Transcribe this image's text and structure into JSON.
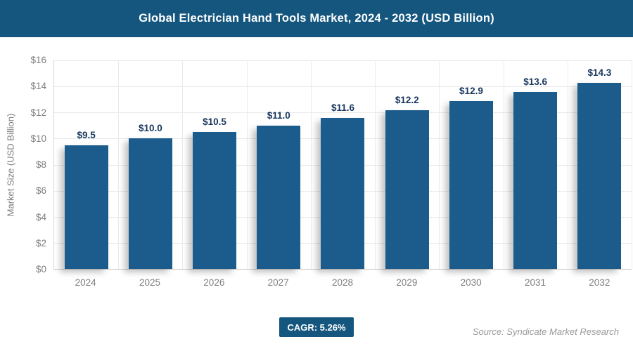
{
  "header": {
    "title": "Global Electrician Hand Tools Market, 2024 - 2032 (USD Billion)"
  },
  "chart_data": {
    "type": "bar",
    "title": "Global Electrician Hand Tools Market, 2024 - 2032 (USD Billion)",
    "categories": [
      "2024",
      "2025",
      "2026",
      "2027",
      "2028",
      "2029",
      "2030",
      "2031",
      "2032"
    ],
    "values": [
      9.5,
      10.0,
      10.5,
      11.0,
      11.6,
      12.2,
      12.9,
      13.6,
      14.3
    ],
    "value_labels": [
      "$9.5",
      "$10.0",
      "$10.5",
      "$11.0",
      "$11.6",
      "$12.2",
      "$12.9",
      "$13.6",
      "$14.3"
    ],
    "xlabel": "",
    "ylabel": "Market Size (USD Billion)",
    "ylim": [
      0,
      16
    ],
    "ytick_values": [
      0,
      2,
      4,
      6,
      8,
      10,
      12,
      14,
      16
    ],
    "ytick_labels": [
      "$0",
      "$2",
      "$4",
      "$6",
      "$8",
      "$10",
      "$12",
      "$14",
      "$16"
    ],
    "grid": "horizontal and vertical light gray",
    "legend": "none"
  },
  "footer": {
    "cagr_label": "CAGR: 5.26%",
    "source": "Source: Syndicate Market Research"
  },
  "colors": {
    "header_bg": "#14567E",
    "bar": "#1B5C8C",
    "value_label": "#17365D",
    "axis_text": "#7F7F7F",
    "gridline": "#E8E8E8",
    "badge_bg": "#14567E",
    "source_text": "#9A9A9A"
  }
}
